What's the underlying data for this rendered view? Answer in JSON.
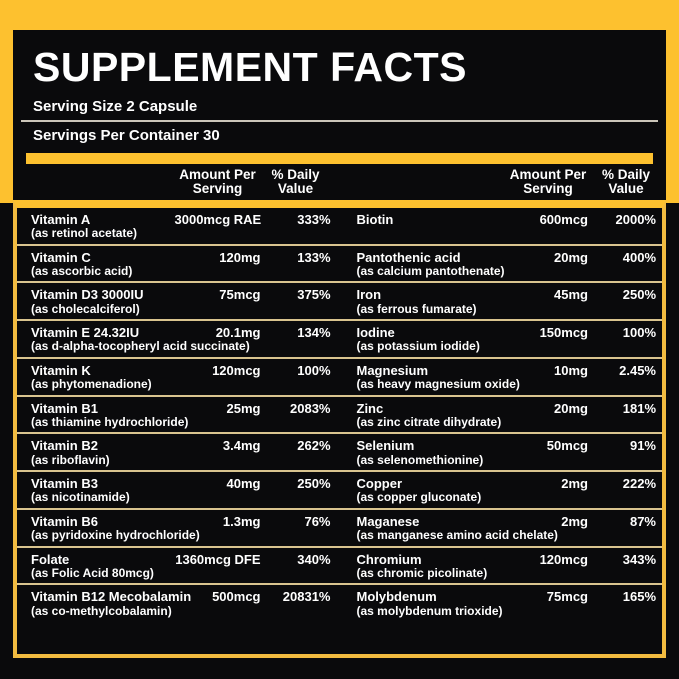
{
  "colors": {
    "accent_yellow": "#FDC12F",
    "table_border_yellow": "#F2BB40",
    "row_separator_gold": "#D9C48F",
    "serving_divider_silver": "#CCC6BA",
    "background_black": "#0A0A0C",
    "text_white": "#FFFFFF"
  },
  "label": {
    "title": "SUPPLEMENT FACTS",
    "serving_size": "Serving Size 2 Capsule",
    "servings_per_container": "Servings Per Container 30"
  },
  "columns": {
    "amount_line1": "Amount Per",
    "amount_line2": "Serving",
    "dv_line1": "% Daily",
    "dv_line2": "Value"
  },
  "table": {
    "rows": [
      {
        "left": {
          "name": "Vitamin A",
          "sub": "(as retinol acetate)",
          "amount": "3000mcg RAE",
          "dv": "333%"
        },
        "right": {
          "name": "Biotin",
          "sub": "",
          "amount": "600mcg",
          "dv": "2000%"
        }
      },
      {
        "left": {
          "name": "Vitamin C",
          "sub": "(as ascorbic acid)",
          "amount": "120mg",
          "dv": "133%"
        },
        "right": {
          "name": "Pantothenic acid",
          "sub": "(as calcium pantothenate)",
          "amount": "20mg",
          "dv": "400%"
        }
      },
      {
        "left": {
          "name": "Vitamin D3 3000IU",
          "sub": "(as cholecalciferol)",
          "amount": "75mcg",
          "dv": "375%"
        },
        "right": {
          "name": "Iron",
          "sub": "(as ferrous fumarate)",
          "amount": "45mg",
          "dv": "250%"
        }
      },
      {
        "left": {
          "name": "Vitamin E 24.32IU",
          "sub": "(as d-alpha-tocopheryl acid succinate)",
          "amount": "20.1mg",
          "dv": "134%"
        },
        "right": {
          "name": "Iodine",
          "sub": "(as potassium iodide)",
          "amount": "150mcg",
          "dv": "100%"
        }
      },
      {
        "left": {
          "name": "Vitamin K",
          "sub": "(as phytomenadione)",
          "amount": "120mcg",
          "dv": "100%"
        },
        "right": {
          "name": "Magnesium",
          "sub": "(as heavy magnesium oxide)",
          "amount": "10mg",
          "dv": "2.45%"
        }
      },
      {
        "left": {
          "name": "Vitamin B1",
          "sub": "(as thiamine hydrochloride)",
          "amount": "25mg",
          "dv": "2083%"
        },
        "right": {
          "name": "Zinc",
          "sub": "(as zinc citrate dihydrate)",
          "amount": "20mg",
          "dv": "181%"
        }
      },
      {
        "left": {
          "name": "Vitamin B2",
          "sub": "(as riboflavin)",
          "amount": "3.4mg",
          "dv": "262%"
        },
        "right": {
          "name": "Selenium",
          "sub": "(as selenomethionine)",
          "amount": "50mcg",
          "dv": "91%"
        }
      },
      {
        "left": {
          "name": "Vitamin B3",
          "sub": "(as nicotinamide)",
          "amount": "40mg",
          "dv": "250%"
        },
        "right": {
          "name": "Copper",
          "sub": "(as copper gluconate)",
          "amount": "2mg",
          "dv": "222%"
        }
      },
      {
        "left": {
          "name": "Vitamin B6",
          "sub": "(as pyridoxine hydrochloride)",
          "amount": "1.3mg",
          "dv": "76%"
        },
        "right": {
          "name": "Maganese",
          "sub": "(as manganese amino acid chelate)",
          "amount": "2mg",
          "dv": "87%"
        }
      },
      {
        "left": {
          "name": "Folate",
          "sub": "(as Folic Acid 80mcg)",
          "amount": "1360mcg DFE",
          "dv": "340%"
        },
        "right": {
          "name": "Chromium",
          "sub": "(as chromic picolinate)",
          "amount": "120mcg",
          "dv": "343%"
        }
      },
      {
        "left": {
          "name": "Vitamin B12 Mecobalamin",
          "sub": "(as co-methylcobalamin)",
          "amount": "500mcg",
          "dv": "20831%"
        },
        "right": {
          "name": "Molybdenum",
          "sub": "(as molybdenum trioxide)",
          "amount": "75mcg",
          "dv": "165%"
        }
      }
    ]
  }
}
